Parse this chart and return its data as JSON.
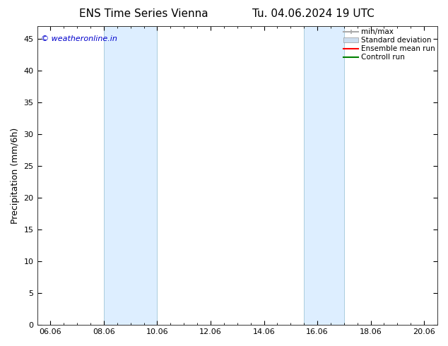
{
  "title_left": "ENS Time Series Vienna",
  "title_right": "Tu. 04.06.2024 19 UTC",
  "ylabel": "Precipitation (mm/6h)",
  "watermark": "© weatheronline.in",
  "watermark_color": "#0000cc",
  "xlim": [
    5.5,
    20.5
  ],
  "ylim": [
    0,
    47
  ],
  "yticks": [
    0,
    5,
    10,
    15,
    20,
    25,
    30,
    35,
    40,
    45
  ],
  "xtick_labels": [
    "06.06",
    "08.06",
    "10.06",
    "12.06",
    "14.06",
    "16.06",
    "18.06",
    "20.06"
  ],
  "xtick_positions": [
    6.0,
    8.0,
    10.0,
    12.0,
    14.0,
    16.0,
    18.0,
    20.0
  ],
  "shaded_bands": [
    {
      "x_start": 8.0,
      "x_end": 10.0
    },
    {
      "x_start": 15.5,
      "x_end": 17.0
    }
  ],
  "shaded_color": "#ddeeff",
  "shaded_edge_color": "#aaccdd",
  "background_color": "#ffffff",
  "title_fontsize": 11,
  "axis_fontsize": 8,
  "ylabel_fontsize": 9,
  "watermark_fontsize": 8,
  "legend_fontsize": 7.5,
  "legend_items": [
    {
      "label": "min/max",
      "color": "#aaaaaa",
      "lw": 1.5
    },
    {
      "label": "Standard deviation",
      "color": "#ccddee",
      "lw": 8
    },
    {
      "label": "Ensemble mean run",
      "color": "#ff0000",
      "lw": 1.5
    },
    {
      "label": "Controll run",
      "color": "#008000",
      "lw": 1.5
    }
  ],
  "minor_xtick_interval": 0.5
}
